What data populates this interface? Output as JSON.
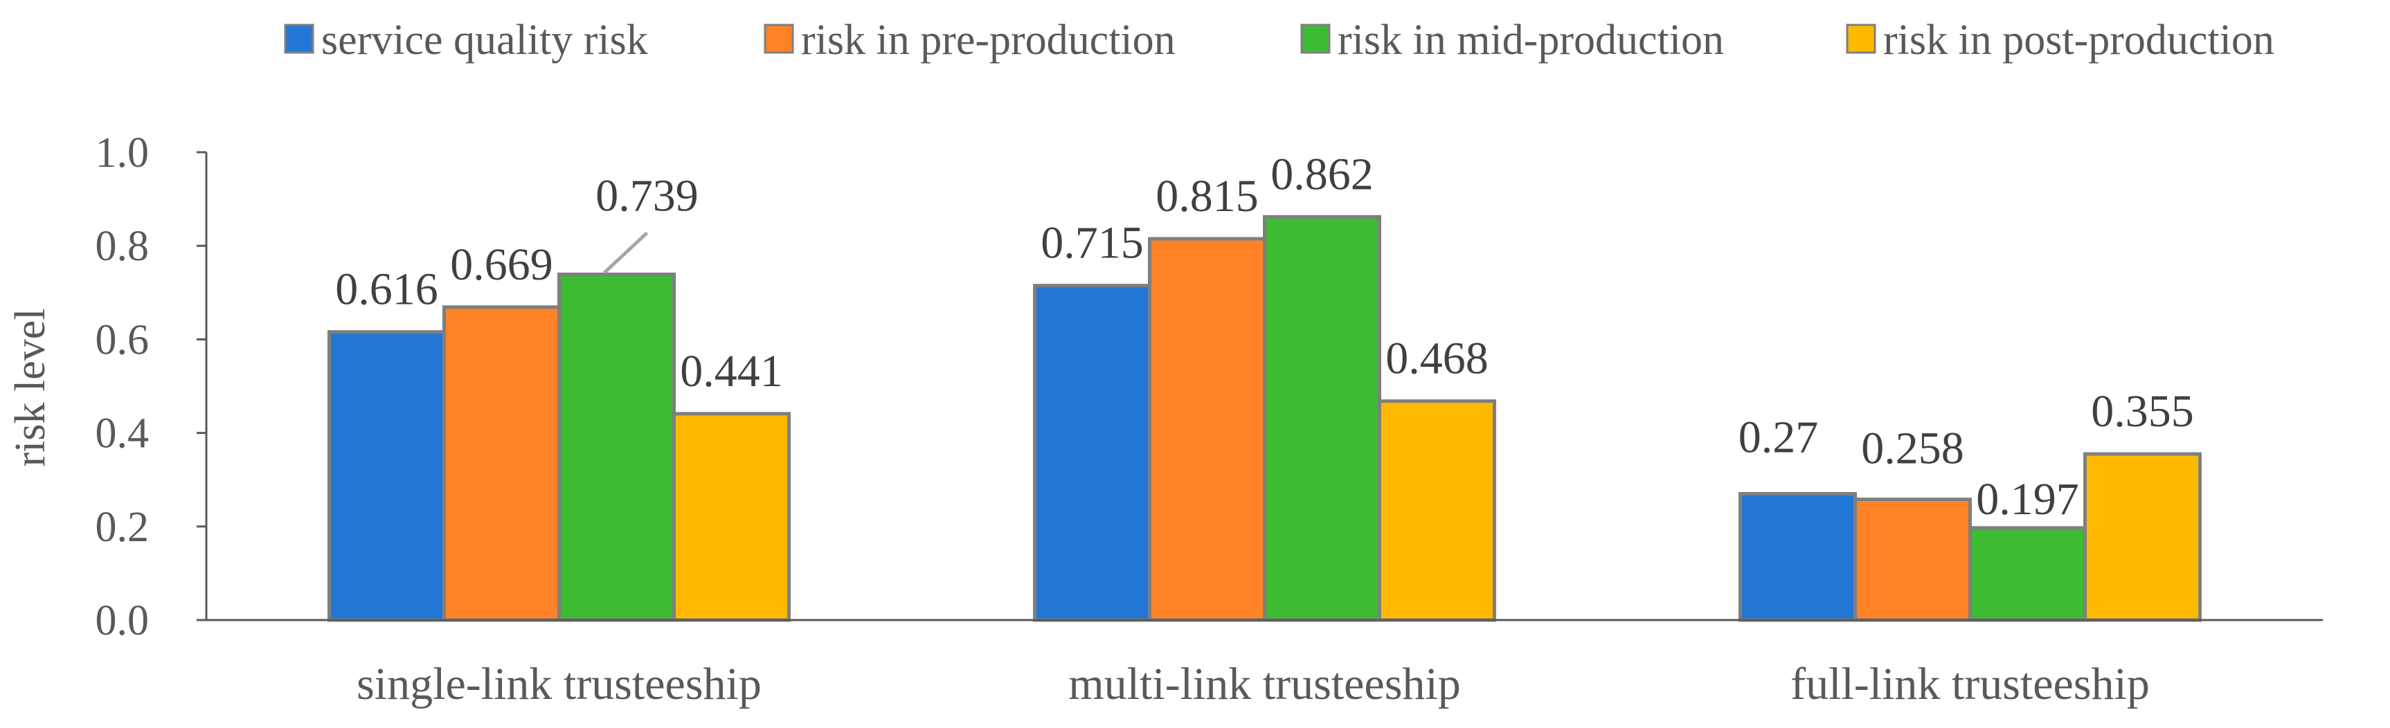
{
  "chart_data": {
    "type": "bar",
    "title": "",
    "xlabel": "",
    "ylabel": "risk level",
    "ylim": [
      0,
      1.0
    ],
    "yticks": [
      "0.0",
      "0.2",
      "0.4",
      "0.6",
      "0.8",
      "1.0"
    ],
    "grid": false,
    "legend_position": "top",
    "categories": [
      "single-link trusteeship",
      "multi-link trusteeship",
      "full-link trusteeship"
    ],
    "series": [
      {
        "name": "service quality risk",
        "color": "#2277D4",
        "values": [
          0.616,
          0.715,
          0.27
        ],
        "labels": [
          "0.616",
          "0.715",
          "0.27"
        ]
      },
      {
        "name": "risk in pre-production",
        "color": "#FF8326",
        "values": [
          0.669,
          0.815,
          0.258
        ],
        "labels": [
          "0.669",
          "0.815",
          "0.258"
        ]
      },
      {
        "name": "risk in mid-production",
        "color": "#3CBB33",
        "values": [
          0.739,
          0.862,
          0.197
        ],
        "labels": [
          "0.739",
          "0.862",
          "0.197"
        ]
      },
      {
        "name": "risk in post-production",
        "color": "#FFBA00",
        "values": [
          0.441,
          0.468,
          0.355
        ],
        "labels": [
          "0.441",
          "0.468",
          "0.355"
        ]
      }
    ],
    "bar_outline_color": "#7F7F7F"
  }
}
